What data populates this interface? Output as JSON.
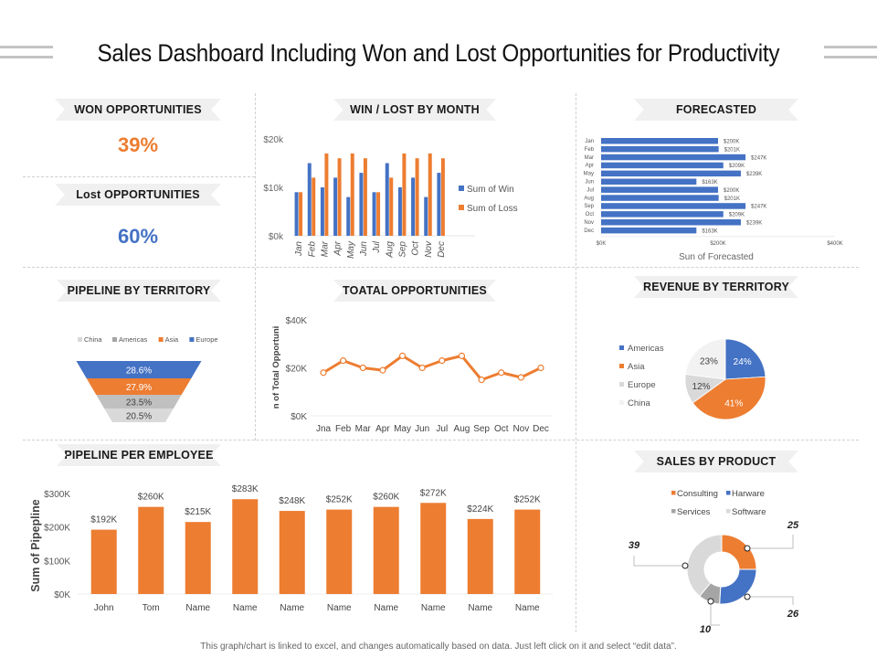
{
  "page": {
    "title": "Sales Dashboard Including Won and Lost Opportunities for Productivity",
    "footer": "This graph/chart is linked to excel, and changes automatically based on data. Just left click on it and select “edit data”."
  },
  "colors": {
    "blue": "#4472c4",
    "orange": "#ed7d31",
    "gray": "#a5a5a5",
    "light_gray": "#d9d9d9",
    "lighter_gray": "#f2f2f2",
    "ribbon": "#f0f0f0"
  },
  "kpis": {
    "won": {
      "title": "WON OPPORTUNITIES",
      "value": "39%",
      "color": "#ed7d31"
    },
    "lost": {
      "title": "Lost OPPORTUNITIES",
      "value": "60%",
      "color": "#4472c4"
    }
  },
  "chart_data": [
    {
      "id": "win_lost",
      "type": "bar",
      "title": "WIN / LOST BY MONTH",
      "categories": [
        "Jan",
        "Feb",
        "Mar",
        "Apr",
        "May",
        "Jun",
        "Jul",
        "Aug",
        "Sep",
        "Oct",
        "Nov",
        "Dec"
      ],
      "series": [
        {
          "name": "Sum of Win",
          "color": "#4472c4",
          "values": [
            9,
            15,
            10,
            12,
            8,
            13,
            9,
            15,
            10,
            12,
            8,
            13
          ]
        },
        {
          "name": "Sum of Loss",
          "color": "#ed7d31",
          "values": [
            9,
            12,
            17,
            16,
            17,
            16,
            9,
            12,
            17,
            16,
            17,
            16
          ]
        }
      ],
      "units": "thousand USD",
      "yticks": [
        "$0k",
        "$10k",
        "$20k"
      ],
      "ylim": [
        0,
        20
      ],
      "legend": "right"
    },
    {
      "id": "forecasted",
      "type": "bar",
      "orientation": "horizontal",
      "title": "FORECASTED",
      "categories": [
        "Jan",
        "Feb",
        "Mar",
        "Apr",
        "May",
        "Jun",
        "Jul",
        "Aug",
        "Sep",
        "Oct",
        "Nov",
        "Dec"
      ],
      "values": [
        200,
        201,
        247,
        209,
        239,
        163,
        200,
        201,
        247,
        209,
        239,
        163
      ],
      "labels": [
        "$200K",
        "$201K",
        "$247K",
        "$209K",
        "$239K",
        "$163K",
        "$200K",
        "$201K",
        "$247K",
        "$209K",
        "$239K",
        "$163K"
      ],
      "xticks": [
        "$0K",
        "$200K",
        "$400K"
      ],
      "xlim": [
        0,
        400
      ],
      "xlabel": "Sun of Forecasted",
      "color": "#4472c4"
    },
    {
      "id": "pipeline_territory",
      "type": "funnel",
      "title": "PIPELINE BY TERRITORY",
      "legend_items": [
        {
          "name": "China",
          "color": "#d9d9d9"
        },
        {
          "name": "Americas",
          "color": "#a5a5a5"
        },
        {
          "name": "Asia",
          "color": "#ed7d31"
        },
        {
          "name": "Europe",
          "color": "#4472c4"
        }
      ],
      "stages": [
        {
          "name": "Europe",
          "value": 28.6,
          "label": "28.6%",
          "color": "#4472c4",
          "text_color": "#ffffff"
        },
        {
          "name": "Asia",
          "value": 27.9,
          "label": "27.9%",
          "color": "#ed7d31",
          "text_color": "#ffffff"
        },
        {
          "name": "Americas",
          "value": 23.5,
          "label": "23.5%",
          "color": "#c0c0c0",
          "text_color": "#404040"
        },
        {
          "name": "China",
          "value": 20.5,
          "label": "20.5%",
          "color": "#d9d9d9",
          "text_color": "#404040"
        }
      ],
      "legend": "top"
    },
    {
      "id": "total_opps",
      "type": "line",
      "title": "TOATAL OPPORTUNITIES",
      "x": [
        "Jna",
        "Feb",
        "Mar",
        "Apr",
        "May",
        "Jun",
        "Jul",
        "Aug",
        "Sep",
        "Oct",
        "Nov",
        "Dec"
      ],
      "values": [
        18,
        23,
        20,
        19,
        25,
        20,
        23,
        25,
        15,
        18,
        16,
        20
      ],
      "units": "thousand USD",
      "ylabel": "n of Total Opportuni",
      "yticks": [
        "$0K",
        "$20K",
        "$40K"
      ],
      "ylim": [
        0,
        40
      ],
      "color": "#ed7d31"
    },
    {
      "id": "revenue_territory",
      "type": "pie",
      "title": "REVENUE BY TERRITORY",
      "slices": [
        {
          "name": "Americas",
          "value": 24,
          "label": "24%",
          "color": "#4472c4",
          "text_color": "#ffffff"
        },
        {
          "name": "Asia",
          "value": 41,
          "label": "41%",
          "color": "#ed7d31",
          "text_color": "#ffffff"
        },
        {
          "name": "Europe",
          "value": 12,
          "label": "12%",
          "color": "#d9d9d9",
          "text_color": "#404040"
        },
        {
          "name": "China",
          "value": 23,
          "label": "23%",
          "color": "#f2f2f2",
          "text_color": "#404040"
        }
      ],
      "legend": "left"
    },
    {
      "id": "pipeline_employee",
      "type": "bar",
      "title": "PIPELINE PER EMPLOYEE",
      "categories": [
        "John",
        "Tom",
        "Name",
        "Name",
        "Name",
        "Name",
        "Name",
        "Name",
        "Name",
        "Name"
      ],
      "values": [
        192,
        260,
        215,
        283,
        248,
        252,
        260,
        272,
        224,
        252
      ],
      "labels": [
        "$192K",
        "$260K",
        "$215K",
        "$283K",
        "$248K",
        "$252K",
        "$260K",
        "$272K",
        "$224K",
        "$252K"
      ],
      "units": "thousand USD",
      "ylabel": "Sum of Pipepline",
      "yticks": [
        "$0K",
        "$100K",
        "$200K",
        "$300K"
      ],
      "ylim": [
        0,
        300
      ],
      "color": "#ed7d31"
    },
    {
      "id": "sales_product",
      "type": "doughnut",
      "title": "SALES BY PRODUCT",
      "slices": [
        {
          "name": "Consulting",
          "value": 25,
          "label": "25",
          "color": "#ed7d31"
        },
        {
          "name": "Harware",
          "value": 26,
          "label": "26",
          "color": "#4472c4"
        },
        {
          "name": "Services",
          "value": 10,
          "label": "10",
          "color": "#a5a5a5"
        },
        {
          "name": "Software",
          "value": 39,
          "label": "39",
          "color": "#d9d9d9"
        }
      ],
      "legend": "top"
    }
  ]
}
